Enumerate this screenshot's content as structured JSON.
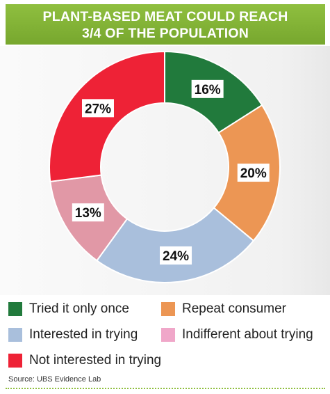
{
  "title": {
    "line1": "PLANT-BASED MEAT COULD REACH",
    "line2": "3/4 OF THE POPULATION"
  },
  "chart_data": {
    "type": "pie",
    "style": "donut",
    "title": "PLANT-BASED MEAT COULD REACH 3/4 OF THE POPULATION",
    "unit": "%",
    "series": [
      {
        "name": "Tried it only once",
        "value": 16,
        "label": "16%",
        "color": "#217a3c"
      },
      {
        "name": "Repeat consumer",
        "value": 20,
        "label": "20%",
        "color": "#ec9654"
      },
      {
        "name": "Interested in trying",
        "value": 24,
        "label": "24%",
        "color": "#a9bfdc"
      },
      {
        "name": "Indifferent about trying",
        "value": 13,
        "label": "13%",
        "color": "#e198a6"
      },
      {
        "name": "Not interested in trying",
        "value": 27,
        "label": "27%",
        "color": "#ee2236"
      }
    ],
    "legend_placement": "bottom"
  },
  "legend": {
    "items": [
      {
        "label": "Tried it only once",
        "color": "#217a3c"
      },
      {
        "label": "Repeat consumer",
        "color": "#ec9654"
      },
      {
        "label": "Interested in trying",
        "color": "#a9bfdc"
      },
      {
        "label": "Indifferent about trying",
        "color": "#f0a7c9"
      },
      {
        "label": "Not interested in trying",
        "color": "#ee2236"
      }
    ]
  },
  "source": "Source: UBS Evidence Lab"
}
